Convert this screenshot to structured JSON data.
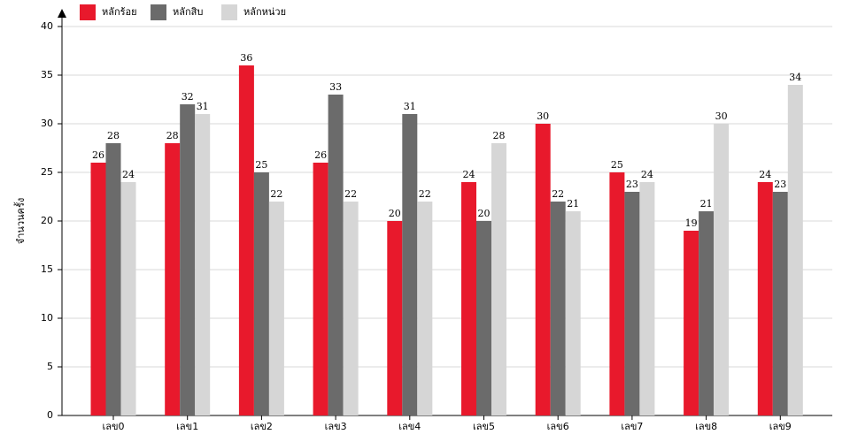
{
  "chart_data": {
    "type": "bar",
    "y_label": "จำนวนครั้ง",
    "categories": [
      "เลข0",
      "เลข1",
      "เลข2",
      "เลข3",
      "เลข4",
      "เลข5",
      "เลข6",
      "เลข7",
      "เลข8",
      "เลข9"
    ],
    "series": [
      {
        "name": "หลักร้อย",
        "color": "#e8192c",
        "values": [
          26,
          28,
          36,
          26,
          20,
          24,
          30,
          25,
          19,
          24
        ]
      },
      {
        "name": "หลักสิบ",
        "color": "#6b6b6b",
        "values": [
          28,
          32,
          25,
          33,
          31,
          20,
          22,
          23,
          21,
          23
        ]
      },
      {
        "name": "หลักหน่วย",
        "color": "#d6d6d6",
        "values": [
          24,
          31,
          22,
          22,
          22,
          28,
          21,
          24,
          30,
          34
        ]
      }
    ],
    "ylim": [
      0,
      40
    ],
    "yticks": [
      0,
      5,
      10,
      15,
      20,
      25,
      30,
      35,
      40
    ],
    "grid": true
  }
}
